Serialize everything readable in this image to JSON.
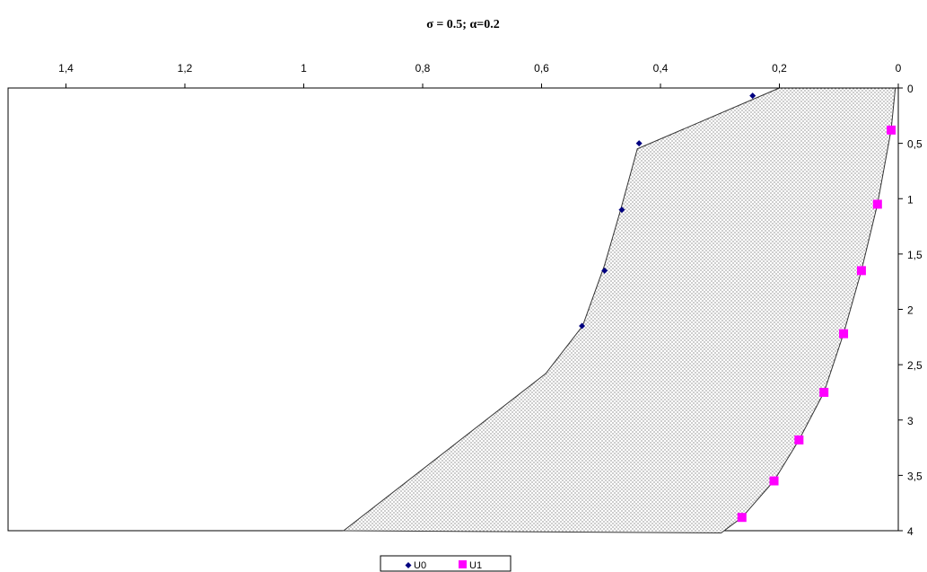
{
  "chart_data": {
    "type": "scatter",
    "title": "σ = 0.5; α=0.2",
    "xlabel": "",
    "ylabel": "",
    "x_reversed": true,
    "y_reversed": true,
    "xlim": [
      0,
      1.5
    ],
    "ylim": [
      0,
      4
    ],
    "x_ticks": [
      1.4,
      1.2,
      1,
      0.8,
      0.6,
      0.4,
      0.2,
      0
    ],
    "x_tick_labels": [
      "1,4",
      "1,2",
      "1",
      "0,8",
      "0,6",
      "0,4",
      "0,2",
      "0"
    ],
    "y_ticks": [
      0,
      0.5,
      1,
      1.5,
      2,
      2.5,
      3,
      3.5,
      4
    ],
    "y_tick_labels": [
      "0",
      "0,5",
      "1",
      "1,5",
      "2",
      "2,5",
      "3",
      "3,5",
      "4"
    ],
    "grid": false,
    "legend_position": "bottom-center",
    "shaded_region": {
      "fill": "dotted",
      "boundary": [
        {
          "x": 0.2,
          "y": 0
        },
        {
          "x": 0.439,
          "y": 0.55
        },
        {
          "x": 0.467,
          "y": 1.1
        },
        {
          "x": 0.494,
          "y": 1.6
        },
        {
          "x": 0.531,
          "y": 2.15
        },
        {
          "x": 0.593,
          "y": 2.58
        },
        {
          "x": 0.933,
          "y": 4.0
        },
        {
          "x": 0.298,
          "y": 4.02
        },
        {
          "x": 0.263,
          "y": 3.88
        },
        {
          "x": 0.209,
          "y": 3.55
        },
        {
          "x": 0.167,
          "y": 3.18
        },
        {
          "x": 0.125,
          "y": 2.75
        },
        {
          "x": 0.092,
          "y": 2.22
        },
        {
          "x": 0.062,
          "y": 1.65
        },
        {
          "x": 0.035,
          "y": 1.05
        },
        {
          "x": 0.012,
          "y": 0.38
        },
        {
          "x": 0.005,
          "y": 0
        }
      ]
    },
    "series": [
      {
        "name": "U0",
        "color": "#000080",
        "marker": "diamond",
        "points": [
          {
            "x": 0.245,
            "y": 0.07
          },
          {
            "x": 0.436,
            "y": 0.5
          },
          {
            "x": 0.465,
            "y": 1.1
          },
          {
            "x": 0.494,
            "y": 1.65
          },
          {
            "x": 0.532,
            "y": 2.15
          }
        ]
      },
      {
        "name": "U1",
        "color": "#ff00ff",
        "marker": "square",
        "points": [
          {
            "x": 0.012,
            "y": 0.38
          },
          {
            "x": 0.035,
            "y": 1.05
          },
          {
            "x": 0.062,
            "y": 1.65
          },
          {
            "x": 0.092,
            "y": 2.22
          },
          {
            "x": 0.125,
            "y": 2.75
          },
          {
            "x": 0.167,
            "y": 3.18
          },
          {
            "x": 0.209,
            "y": 3.55
          },
          {
            "x": 0.263,
            "y": 3.88
          }
        ]
      }
    ]
  }
}
